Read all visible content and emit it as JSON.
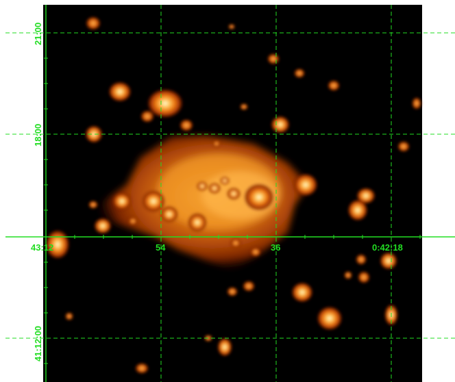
{
  "image": {
    "description_name": "xray-heat-map",
    "colors": {
      "background": "#000000",
      "grid": "#22dd22",
      "glow_core": "#fff7c0",
      "glow_mid": "#ff9a1a",
      "glow_outer": "#7a1e00"
    }
  },
  "axes": {
    "ra_labels": [
      "43:12",
      "54",
      "36",
      "0:42:18"
    ],
    "dec_labels": [
      "21:00",
      "18:00",
      "41:12:00"
    ]
  }
}
